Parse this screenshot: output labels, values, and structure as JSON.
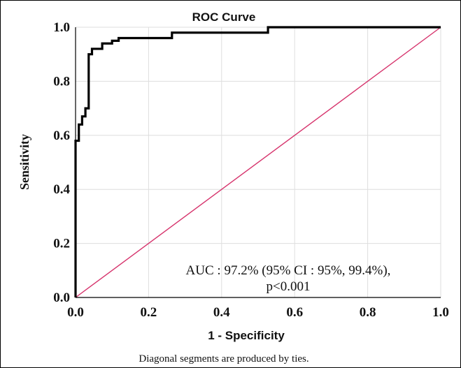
{
  "chart_data": {
    "type": "line",
    "title": "ROC Curve",
    "xlabel": "1 - Specificity",
    "ylabel": "Sensitivity",
    "xlim": [
      0,
      1
    ],
    "ylim": [
      0,
      1
    ],
    "x_ticks": [
      "0.0",
      "0.2",
      "0.4",
      "0.6",
      "0.8",
      "1.0"
    ],
    "y_ticks": [
      "0.0",
      "0.2",
      "0.4",
      "0.6",
      "0.8",
      "1.0"
    ],
    "grid": true,
    "series": [
      {
        "role": "roc-curve",
        "color": "#000000",
        "x": [
          0.0,
          0.0,
          0.009,
          0.009,
          0.018,
          0.018,
          0.027,
          0.027,
          0.036,
          0.036,
          0.045,
          0.045,
          0.073,
          0.073,
          0.1,
          0.1,
          0.118,
          0.118,
          0.264,
          0.264,
          0.527,
          0.527,
          1.0
        ],
        "y": [
          0.0,
          0.58,
          0.58,
          0.64,
          0.64,
          0.67,
          0.67,
          0.7,
          0.7,
          0.9,
          0.9,
          0.92,
          0.92,
          0.94,
          0.94,
          0.95,
          0.95,
          0.96,
          0.96,
          0.98,
          0.98,
          1.0,
          1.0
        ]
      },
      {
        "role": "reference-diagonal",
        "color": "#d6336c",
        "x": [
          0,
          1
        ],
        "y": [
          0,
          1
        ]
      }
    ],
    "annotation_lines": [
      "AUC : 97.2% (95% CI : 95%, 99.4%),",
      "p<0.001"
    ],
    "footnote": "Diagonal segments are produced by ties."
  }
}
